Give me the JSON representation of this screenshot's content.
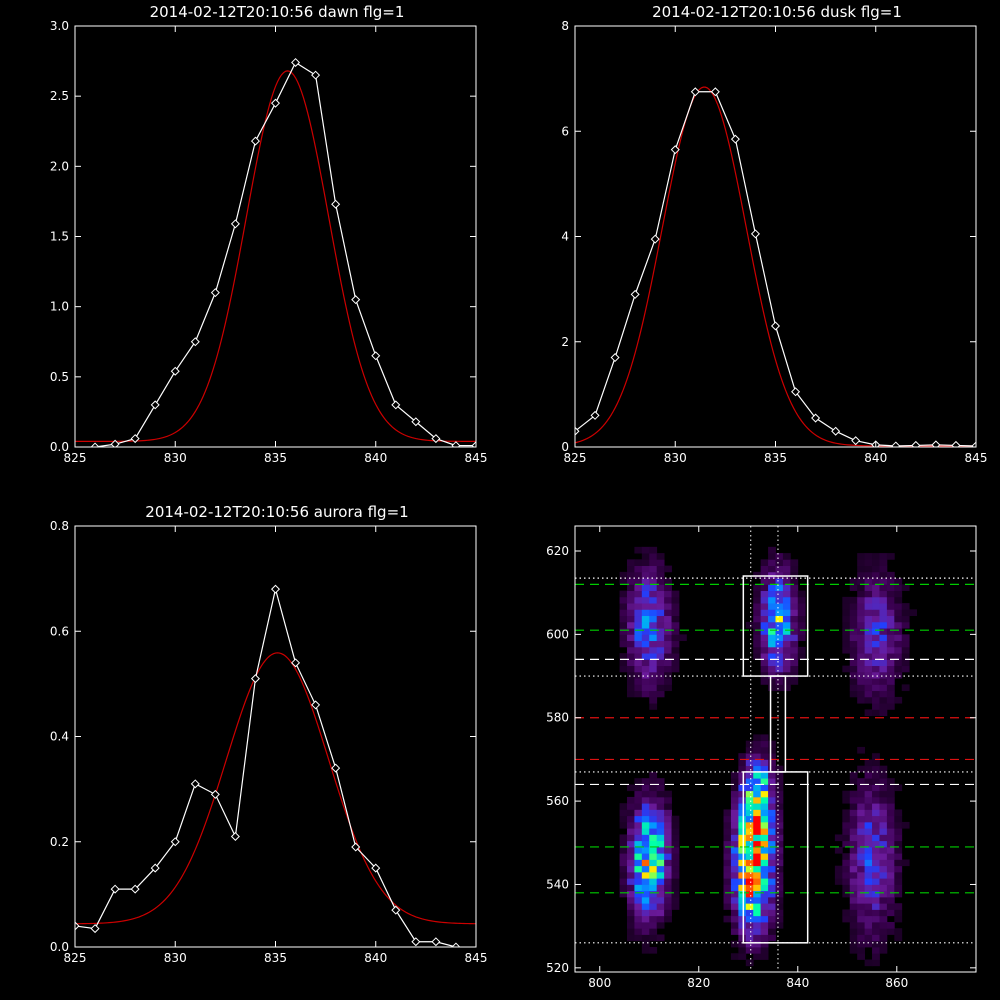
{
  "chart_data": [
    {
      "type": "line",
      "title": "2014-02-12T20:10:56 dawn flg=1",
      "xlabel": "",
      "ylabel": "",
      "xlim": [
        825,
        845
      ],
      "ylim": [
        0,
        3.0
      ],
      "xticks": [
        "825",
        "830",
        "835",
        "840",
        "845"
      ],
      "yticks": [
        "0.0",
        "0.5",
        "1.0",
        "1.5",
        "2.0",
        "2.5",
        "3.0"
      ],
      "grid": false,
      "colors": {
        "data": "#ffffff",
        "fit": "#cc0000"
      },
      "series": [
        {
          "role": "data",
          "marker": "diamond",
          "x": [
            826,
            827,
            828,
            829,
            830,
            831,
            832,
            833,
            834,
            835,
            836,
            837,
            838,
            839,
            840,
            841,
            842,
            843,
            844,
            845
          ],
          "y": [
            0.0,
            0.02,
            0.06,
            0.3,
            0.54,
            0.75,
            1.1,
            1.59,
            2.18,
            2.45,
            2.74,
            2.65,
            1.73,
            1.05,
            0.65,
            0.3,
            0.18,
            0.06,
            0.01,
            0.01
          ]
        },
        {
          "role": "fit",
          "fn": "gauss",
          "params": {
            "a": 2.64,
            "mu": 835.6,
            "sigma": 2.05,
            "c": 0.04
          }
        }
      ]
    },
    {
      "type": "line",
      "title": "2014-02-12T20:10:56 dusk flg=1",
      "xlabel": "",
      "ylabel": "",
      "xlim": [
        825,
        845
      ],
      "ylim": [
        0,
        8
      ],
      "xticks": [
        "825",
        "830",
        "835",
        "840",
        "845"
      ],
      "yticks": [
        "0",
        "2",
        "4",
        "6",
        "8"
      ],
      "grid": false,
      "colors": {
        "data": "#ffffff",
        "fit": "#cc0000"
      },
      "series": [
        {
          "role": "data",
          "marker": "diamond",
          "x": [
            825,
            826,
            827,
            828,
            829,
            830,
            831,
            832,
            833,
            834,
            835,
            836,
            837,
            838,
            839,
            840,
            841,
            842,
            843,
            844,
            845
          ],
          "y": [
            0.3,
            0.6,
            1.7,
            2.9,
            3.95,
            5.65,
            6.75,
            6.75,
            5.85,
            4.05,
            2.3,
            1.05,
            0.55,
            0.3,
            0.12,
            0.04,
            0.02,
            0.03,
            0.04,
            0.03,
            0.02
          ]
        },
        {
          "role": "fit",
          "fn": "gauss",
          "params": {
            "a": 6.82,
            "mu": 831.45,
            "sigma": 2.1,
            "c": 0.02
          }
        }
      ]
    },
    {
      "type": "line",
      "title": "2014-02-12T20:10:56 aurora flg=1",
      "xlabel": "",
      "ylabel": "",
      "xlim": [
        825,
        845
      ],
      "ylim": [
        0,
        0.8
      ],
      "xticks": [
        "825",
        "830",
        "835",
        "840",
        "845"
      ],
      "yticks": [
        "0.0",
        "0.2",
        "0.4",
        "0.6",
        "0.8"
      ],
      "grid": false,
      "colors": {
        "data": "#ffffff",
        "fit": "#cc0000"
      },
      "series": [
        {
          "role": "data",
          "marker": "diamond",
          "x": [
            825,
            826,
            827,
            828,
            829,
            830,
            831,
            832,
            833,
            834,
            835,
            836,
            837,
            838,
            839,
            840,
            841,
            842,
            843,
            844
          ],
          "y": [
            0.04,
            0.035,
            0.11,
            0.11,
            0.15,
            0.2,
            0.31,
            0.29,
            0.21,
            0.51,
            0.68,
            0.54,
            0.46,
            0.34,
            0.19,
            0.15,
            0.07,
            0.01,
            0.01,
            0.0
          ]
        },
        {
          "role": "fit",
          "fn": "gauss",
          "params": {
            "a": 0.515,
            "mu": 835.1,
            "sigma": 2.55,
            "c": 0.044
          }
        }
      ]
    },
    {
      "type": "heatmap",
      "title": "",
      "xlabel": "",
      "ylabel": "",
      "xlim": [
        795,
        876
      ],
      "ylim": [
        519,
        626
      ],
      "xticks": [
        "800",
        "820",
        "840",
        "860"
      ],
      "yticks": [
        "520",
        "540",
        "560",
        "580",
        "600",
        "620"
      ],
      "grid": false,
      "colormap": [
        "#000000",
        "#3a0050",
        "#6a1a9a",
        "#2040ff",
        "#00a0ff",
        "#00ffaa",
        "#ffff00",
        "#ff8000",
        "#ff0000"
      ],
      "blobs": [
        {
          "x": 810,
          "y": 546,
          "sx": 2.6,
          "sy": 9,
          "a": 0.7
        },
        {
          "x": 810,
          "y": 602,
          "sx": 3.0,
          "sy": 9,
          "a": 0.4
        },
        {
          "x": 831,
          "y": 545,
          "sx": 2.6,
          "sy": 10,
          "a": 0.95
        },
        {
          "x": 832,
          "y": 562,
          "sx": 2.0,
          "sy": 6,
          "a": 0.5
        },
        {
          "x": 836,
          "y": 603,
          "sx": 2.4,
          "sy": 8,
          "a": 0.55
        },
        {
          "x": 855,
          "y": 546,
          "sx": 3.2,
          "sy": 12,
          "a": 0.33
        },
        {
          "x": 856,
          "y": 600,
          "sx": 3.5,
          "sy": 10,
          "a": 0.28
        }
      ],
      "hlines": [
        {
          "y": 612,
          "style": "dashed",
          "color": "#00cc00"
        },
        {
          "y": 601,
          "style": "dashed",
          "color": "#00cc00"
        },
        {
          "y": 549,
          "style": "dashed",
          "color": "#00cc00"
        },
        {
          "y": 538,
          "style": "dashed",
          "color": "#00cc00"
        },
        {
          "y": 594,
          "style": "dashed",
          "color": "#ffffff"
        },
        {
          "y": 564,
          "style": "dashed",
          "color": "#ffffff"
        },
        {
          "y": 580,
          "style": "dashed",
          "color": "#dd1111"
        },
        {
          "y": 570,
          "style": "dashed",
          "color": "#dd1111"
        },
        {
          "y": 613.5,
          "style": "dotted",
          "color": "#ffffff"
        },
        {
          "y": 590,
          "style": "dotted",
          "color": "#ffffff"
        },
        {
          "y": 567,
          "style": "dotted",
          "color": "#ffffff"
        },
        {
          "y": 526,
          "style": "dotted",
          "color": "#ffffff"
        }
      ],
      "vlines": [
        {
          "x": 830.5,
          "style": "dotted",
          "color": "#ffffff"
        },
        {
          "x": 836,
          "style": "dotted",
          "color": "#ffffff"
        }
      ],
      "boxes": [
        {
          "x0": 829,
          "x1": 842,
          "y0": 590,
          "y1": 614
        },
        {
          "x0": 829,
          "x1": 842,
          "y0": 526,
          "y1": 567
        }
      ],
      "connector": {
        "x0": 834.5,
        "x1": 837.5,
        "y0": 567,
        "y1": 590
      }
    }
  ]
}
